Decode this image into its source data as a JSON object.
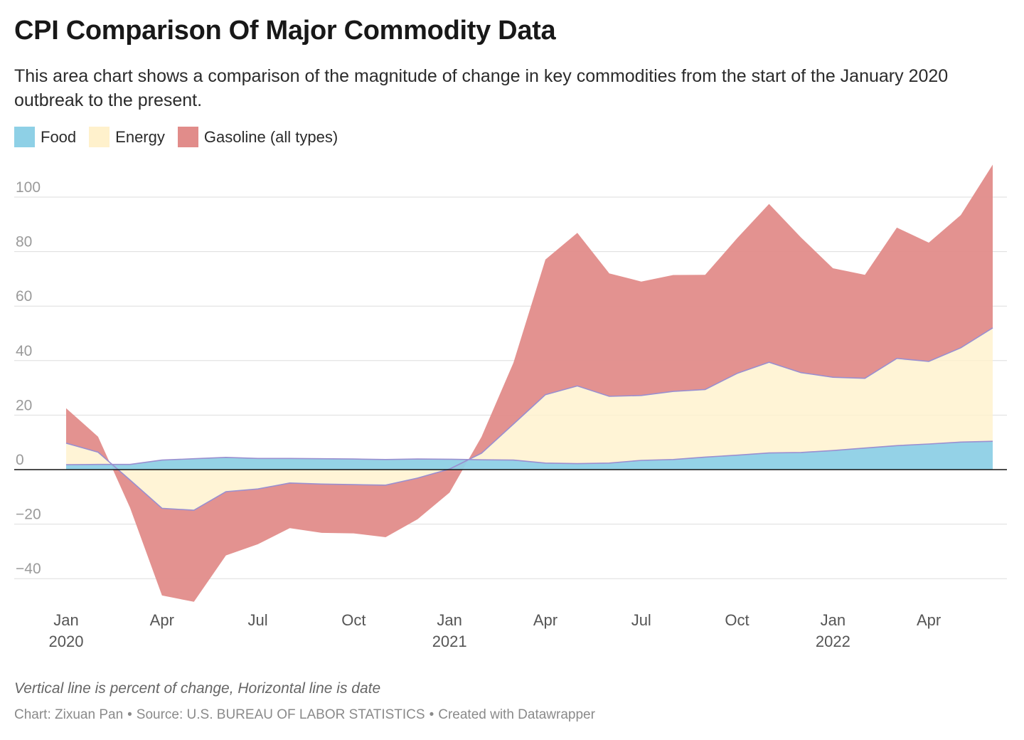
{
  "header": {
    "title": "CPI Comparison Of Major Commodity Data",
    "subtitle": "This area chart shows a comparison of the magnitude of change in key commodities from the start of the January 2020 outbreak to the present."
  },
  "legend": [
    {
      "label": "Food",
      "color": "#8ed0e6"
    },
    {
      "label": "Energy",
      "color": "#fff1cc"
    },
    {
      "label": "Gasoline (all types)",
      "color": "#e18c8a"
    }
  ],
  "chart_data": {
    "type": "area",
    "x": [
      "2020-01",
      "2020-02",
      "2020-03",
      "2020-04",
      "2020-05",
      "2020-06",
      "2020-07",
      "2020-08",
      "2020-09",
      "2020-10",
      "2020-11",
      "2020-12",
      "2021-01",
      "2021-02",
      "2021-03",
      "2021-04",
      "2021-05",
      "2021-06",
      "2021-07",
      "2021-08",
      "2021-09",
      "2021-10",
      "2021-11",
      "2021-12",
      "2022-01",
      "2022-02",
      "2022-03",
      "2022-04",
      "2022-05",
      "2022-06"
    ],
    "series": [
      {
        "name": "Food",
        "color": "#8ed0e6",
        "values": [
          1.8,
          1.9,
          1.9,
          3.5,
          4.0,
          4.5,
          4.1,
          4.1,
          4.0,
          3.9,
          3.7,
          3.9,
          3.8,
          3.6,
          3.5,
          2.4,
          2.2,
          2.4,
          3.4,
          3.7,
          4.6,
          5.3,
          6.1,
          6.3,
          7.0,
          7.9,
          8.8,
          9.4,
          10.1,
          10.4
        ]
      },
      {
        "name": "Energy",
        "color": "#fff1cc",
        "values": [
          7.9,
          4.5,
          -5.7,
          -17.7,
          -18.9,
          -12.6,
          -11.2,
          -9.0,
          -9.3,
          -9.4,
          -9.4,
          -7.0,
          -3.6,
          2.4,
          13.2,
          25.1,
          28.5,
          24.5,
          23.8,
          25.0,
          24.8,
          30.0,
          33.3,
          29.3,
          26.9,
          25.6,
          32.0,
          30.3,
          34.6,
          41.6
        ]
      },
      {
        "name": "Gasoline (all types)",
        "color": "#e18c8a",
        "values": [
          12.8,
          5.7,
          -10.2,
          -32.0,
          -33.6,
          -23.4,
          -20.3,
          -16.6,
          -17.9,
          -17.9,
          -19.1,
          -15.1,
          -8.6,
          6.0,
          22.5,
          49.6,
          56.2,
          45.1,
          41.8,
          42.7,
          42.1,
          49.6,
          58.1,
          49.6,
          40.0,
          38.0,
          48.0,
          43.6,
          48.7,
          59.9
        ]
      }
    ],
    "y_ticks": [
      "100",
      "80",
      "60",
      "40",
      "20",
      "0",
      "−20",
      "−40"
    ],
    "ylim": [
      -50,
      115
    ],
    "x_ticks": [
      {
        "x": "2020-01",
        "label": "Jan",
        "year": "2020"
      },
      {
        "x": "2020-04",
        "label": "Apr",
        "year": ""
      },
      {
        "x": "2020-07",
        "label": "Jul",
        "year": ""
      },
      {
        "x": "2020-10",
        "label": "Oct",
        "year": ""
      },
      {
        "x": "2021-01",
        "label": "Jan",
        "year": "2021"
      },
      {
        "x": "2021-04",
        "label": "Apr",
        "year": ""
      },
      {
        "x": "2021-07",
        "label": "Jul",
        "year": ""
      },
      {
        "x": "2021-10",
        "label": "Oct",
        "year": ""
      },
      {
        "x": "2022-01",
        "label": "Jan",
        "year": "2022"
      },
      {
        "x": "2022-04",
        "label": "Apr",
        "year": ""
      }
    ],
    "stacked": true,
    "grid": true,
    "legend_position": "top-left"
  },
  "footer": {
    "note": "Vertical line is percent of change, Horizontal line is date",
    "credit": "Chart: Zixuan Pan",
    "source": "Source: U.S. BUREAU OF LABOR STATISTICS",
    "tool": "Created with Datawrapper",
    "separator": "•"
  }
}
